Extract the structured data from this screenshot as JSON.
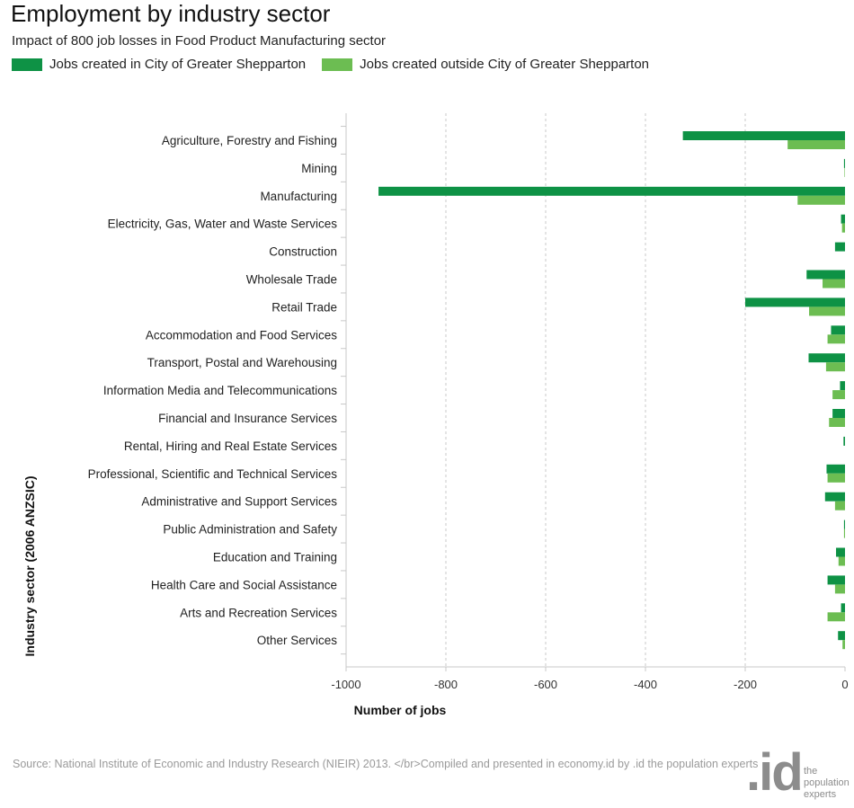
{
  "chart_data": {
    "type": "bar",
    "orientation": "horizontal",
    "title": "Employment by industry sector",
    "subtitle": "Impact of 800 job losses in Food Product Manufacturing sector",
    "xlabel": "Number of jobs",
    "ylabel": "Industry sector (2006 ANZSIC)",
    "xlim": [
      -1000,
      0
    ],
    "xticks": [
      -1000,
      -800,
      -600,
      -400,
      -200,
      0
    ],
    "grid": "vertical dashed",
    "legend_position": "top-left",
    "categories": [
      "Agriculture, Forestry and Fishing",
      "Mining",
      "Manufacturing",
      "Electricity, Gas, Water and Waste Services",
      "Construction",
      "Wholesale Trade",
      "Retail Trade",
      "Accommodation and Food Services",
      "Transport, Postal and Warehousing",
      "Information Media and Telecommunications",
      "Financial and Insurance Services",
      "Rental, Hiring and Real Estate Services",
      "Professional, Scientific and Technical Services",
      "Administrative and Support Services",
      "Public Administration and Safety",
      "Education and Training",
      "Health Care and Social Assistance",
      "Arts and Recreation Services",
      "Other Services"
    ],
    "series": [
      {
        "name": "Jobs created in City of Greater Shepparton",
        "color": "#0e9245",
        "values": [
          -325,
          -2,
          -935,
          -8,
          -20,
          -77,
          -200,
          -28,
          -73,
          -10,
          -25,
          -3,
          -37,
          -40,
          -2,
          -18,
          -35,
          -8,
          -14
        ]
      },
      {
        "name": "Jobs created outside City of Greater Shepparton",
        "color": "#6cbd52",
        "values": [
          -115,
          -1,
          -95,
          -6,
          0,
          -45,
          -72,
          -35,
          -38,
          -25,
          -32,
          0,
          -35,
          -20,
          -2,
          -13,
          -20,
          -35,
          -5
        ]
      }
    ]
  },
  "footer": {
    "source": "Source: National Institute of Economic and Industry Research (NIEIR) 2013. </br>Compiled and presented in economy.id by .id the population experts"
  },
  "logo": {
    "mark": ".id",
    "text": "the\npopulation\nexperts"
  }
}
